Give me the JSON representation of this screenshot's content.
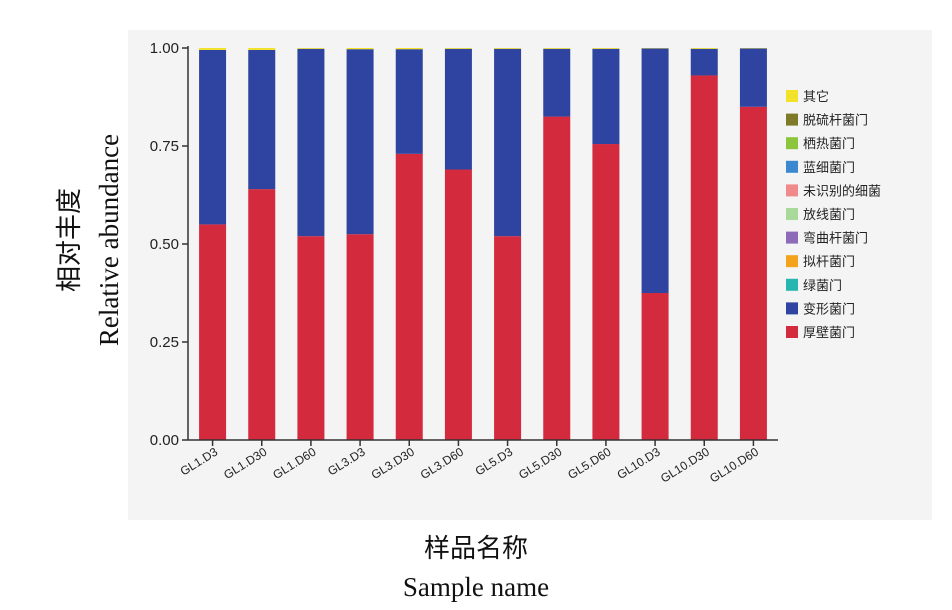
{
  "chart_data": {
    "type": "bar",
    "stacked": true,
    "xlabel_cn": "样品名称",
    "xlabel_en": "Sample name",
    "ylabel_cn": "相对丰度",
    "ylabel_en": "Relative abundance",
    "ylim": [
      0,
      1
    ],
    "yticks": [
      "0.00",
      "0.25",
      "0.50",
      "0.75",
      "1.00"
    ],
    "ytick_values": [
      0,
      0.25,
      0.5,
      0.75,
      1.0
    ],
    "grid": false,
    "legend_position": "right",
    "categories": [
      "GL1.D3",
      "GL1.D30",
      "GL1.D60",
      "GL3.D3",
      "GL3.D30",
      "GL3.D60",
      "GL5.D3",
      "GL5.D30",
      "GL5.D60",
      "GL10.D3",
      "GL10.D30",
      "GL10.D60"
    ],
    "series": [
      {
        "name": "厚壁菌门",
        "color": "#d32a3e",
        "values": [
          0.55,
          0.64,
          0.52,
          0.525,
          0.73,
          0.69,
          0.52,
          0.825,
          0.755,
          0.375,
          0.93,
          0.85
        ]
      },
      {
        "name": "变形菌门",
        "color": "#2f44a0",
        "values": [
          0.445,
          0.355,
          0.478,
          0.472,
          0.267,
          0.308,
          0.478,
          0.173,
          0.243,
          0.624,
          0.068,
          0.149
        ]
      },
      {
        "name": "绿菌门",
        "color": "#26b5b0",
        "values": [
          0,
          0,
          0,
          0,
          0,
          0,
          0,
          0,
          0,
          0,
          0,
          0
        ]
      },
      {
        "name": "拟杆菌门",
        "color": "#f2a31b",
        "values": [
          0,
          0,
          0,
          0,
          0,
          0,
          0,
          0,
          0,
          0,
          0,
          0
        ]
      },
      {
        "name": "弯曲杆菌门",
        "color": "#8e6bb8",
        "values": [
          0,
          0,
          0,
          0,
          0,
          0,
          0,
          0,
          0,
          0,
          0,
          0
        ]
      },
      {
        "name": "放线菌门",
        "color": "#a8d89a",
        "values": [
          0,
          0,
          0,
          0,
          0,
          0,
          0,
          0,
          0,
          0,
          0,
          0
        ]
      },
      {
        "name": "未识别的细菌",
        "color": "#f08a8a",
        "values": [
          0,
          0,
          0,
          0,
          0,
          0,
          0,
          0,
          0,
          0,
          0,
          0
        ]
      },
      {
        "name": "蓝细菌门",
        "color": "#3c88d0",
        "values": [
          0,
          0,
          0,
          0,
          0,
          0,
          0,
          0,
          0,
          0,
          0,
          0
        ]
      },
      {
        "name": "栖热菌门",
        "color": "#8cc43c",
        "values": [
          0,
          0,
          0,
          0,
          0,
          0,
          0,
          0,
          0,
          0,
          0,
          0
        ]
      },
      {
        "name": "脱硫杆菌门",
        "color": "#7e7a2a",
        "values": [
          0,
          0,
          0,
          0,
          0,
          0,
          0,
          0,
          0,
          0,
          0,
          0
        ]
      },
      {
        "name": "其它",
        "color": "#f2e22a",
        "values": [
          0.005,
          0.005,
          0.002,
          0.003,
          0.003,
          0.002,
          0.002,
          0.002,
          0.002,
          0.001,
          0.002,
          0.001
        ]
      }
    ],
    "legend_order": [
      "其它",
      "脱硫杆菌门",
      "栖热菌门",
      "蓝细菌门",
      "未识别的细菌",
      "放线菌门",
      "弯曲杆菌门",
      "拟杆菌门",
      "绿菌门",
      "变形菌门",
      "厚壁菌门"
    ]
  }
}
